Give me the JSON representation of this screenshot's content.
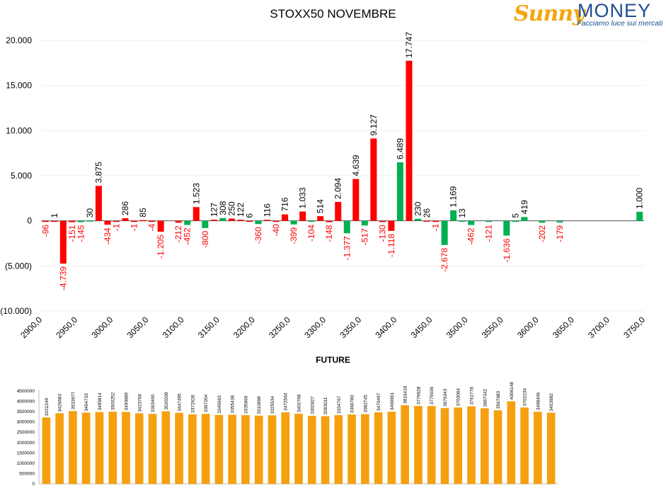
{
  "logo": {
    "name_part1": "Sunny",
    "name_part2": "MONEY",
    "tagline": "Facciamo luce sui mercati"
  },
  "chart_data": [
    {
      "type": "bar",
      "title": "STOXX50 NOVEMBRE",
      "ylim": [
        -10000,
        20000
      ],
      "yticks": [
        20000,
        15000,
        10000,
        5000,
        0,
        -5000,
        -10000
      ],
      "ytick_labels": [
        "20.000",
        "15.000",
        "10.000",
        "5.000",
        "0",
        "(5.000)",
        "(10.000)"
      ],
      "grid": true,
      "x_min": 2900,
      "x_step": 12.5,
      "xtick_labels": [
        "2900,0",
        "2950,0",
        "3000,0",
        "3050,0",
        "3100,0",
        "3150,0",
        "3200,0",
        "3250,0",
        "3300,0",
        "3350,0",
        "3400,0",
        "3450,0",
        "3500,0",
        "3550,0",
        "3600,0",
        "3650,0",
        "3700,0",
        "3750,0"
      ],
      "colors": {
        "positive": "#ff0000",
        "negative": "#00b050",
        "label_positive": "#000000",
        "label_negative": "#ff0000"
      },
      "bars": [
        {
          "value": -96,
          "color": "red",
          "label": "-96"
        },
        {
          "value": 1,
          "color": "red",
          "label": "1"
        },
        {
          "value": -4739,
          "color": "red",
          "label": "-4.739"
        },
        {
          "value": -151,
          "color": "red",
          "label": "-151"
        },
        {
          "value": -145,
          "color": "green",
          "label": "-145"
        },
        {
          "value": 30,
          "color": "green",
          "label": "30"
        },
        {
          "value": 3875,
          "color": "red",
          "label": "3.875"
        },
        {
          "value": -434,
          "color": "red",
          "label": "-434"
        },
        {
          "value": -1,
          "color": "red",
          "label": "-1"
        },
        {
          "value": 286,
          "color": "red",
          "label": "286"
        },
        {
          "value": -1,
          "color": "red",
          "label": "-1"
        },
        {
          "value": 85,
          "color": "red",
          "label": "85"
        },
        {
          "value": -4,
          "color": "red",
          "label": "-4"
        },
        {
          "value": -1205,
          "color": "red",
          "label": "-1.205"
        },
        {
          "value": 0,
          "color": "red",
          "label": ""
        },
        {
          "value": -212,
          "color": "red",
          "label": "-212"
        },
        {
          "value": -452,
          "color": "green",
          "label": "-452"
        },
        {
          "value": 1523,
          "color": "red",
          "label": "1.523"
        },
        {
          "value": -800,
          "color": "green",
          "label": "-800"
        },
        {
          "value": 127,
          "color": "red",
          "label": "127"
        },
        {
          "value": 308,
          "color": "green",
          "label": "308"
        },
        {
          "value": 250,
          "color": "red",
          "label": "250"
        },
        {
          "value": 122,
          "color": "red",
          "label": "122"
        },
        {
          "value": 6,
          "color": "red",
          "label": "6"
        },
        {
          "value": -360,
          "color": "green",
          "label": "-360"
        },
        {
          "value": 116,
          "color": "red",
          "label": "116"
        },
        {
          "value": -40,
          "color": "red",
          "label": "-40"
        },
        {
          "value": 716,
          "color": "red",
          "label": "716"
        },
        {
          "value": -399,
          "color": "green",
          "label": "-399"
        },
        {
          "value": 1033,
          "color": "red",
          "label": "1.033"
        },
        {
          "value": -104,
          "color": "green",
          "label": "-104"
        },
        {
          "value": 514,
          "color": "red",
          "label": "514"
        },
        {
          "value": -148,
          "color": "red",
          "label": "-148"
        },
        {
          "value": 2094,
          "color": "red",
          "label": "2.094"
        },
        {
          "value": -1377,
          "color": "green",
          "label": "-1.377"
        },
        {
          "value": 4639,
          "color": "red",
          "label": "4.639"
        },
        {
          "value": -517,
          "color": "green",
          "label": "-517"
        },
        {
          "value": 9127,
          "color": "red",
          "label": "9.127"
        },
        {
          "value": -130,
          "color": "red",
          "label": "-130"
        },
        {
          "value": -1118,
          "color": "red",
          "label": "-1.118"
        },
        {
          "value": 6489,
          "color": "green",
          "label": "6.489"
        },
        {
          "value": 17747,
          "color": "red",
          "label": "17.747"
        },
        {
          "value": 230,
          "color": "green",
          "label": "230"
        },
        {
          "value": 26,
          "color": "red",
          "label": "26"
        },
        {
          "value": -1,
          "color": "red",
          "label": "-1"
        },
        {
          "value": -2678,
          "color": "green",
          "label": "-2.678"
        },
        {
          "value": 1169,
          "color": "green",
          "label": "1.169"
        },
        {
          "value": 13,
          "color": "green",
          "label": "13"
        },
        {
          "value": -462,
          "color": "green",
          "label": "-462"
        },
        {
          "value": 0,
          "color": "green",
          "label": ""
        },
        {
          "value": -121,
          "color": "green",
          "label": "-121"
        },
        {
          "value": 0,
          "color": "green",
          "label": ""
        },
        {
          "value": -1636,
          "color": "green",
          "label": "-1.636"
        },
        {
          "value": 5,
          "color": "green",
          "label": "5"
        },
        {
          "value": 419,
          "color": "green",
          "label": "419"
        },
        {
          "value": 0,
          "color": "green",
          "label": ""
        },
        {
          "value": -202,
          "color": "green",
          "label": "-202"
        },
        {
          "value": 0,
          "color": "green",
          "label": ""
        },
        {
          "value": -179,
          "color": "green",
          "label": "-179"
        },
        {
          "value": 0,
          "color": "green",
          "label": ""
        },
        {
          "value": 0,
          "color": "green",
          "label": ""
        },
        {
          "value": 0,
          "color": "green",
          "label": ""
        },
        {
          "value": 0,
          "color": "green",
          "label": ""
        },
        {
          "value": 0,
          "color": "green",
          "label": ""
        },
        {
          "value": 0,
          "color": "green",
          "label": ""
        },
        {
          "value": 0,
          "color": "green",
          "label": ""
        },
        {
          "value": 0,
          "color": "green",
          "label": ""
        },
        {
          "value": 1000,
          "color": "green",
          "label": "1.000"
        }
      ]
    },
    {
      "type": "bar",
      "title": "FUTURE",
      "ylim": [
        0,
        4500000
      ],
      "yticks": [
        0,
        500000,
        1000000,
        1500000,
        2000000,
        2500000,
        3000000,
        3500000,
        4000000,
        4500000
      ],
      "ytick_labels": [
        "0",
        "500000",
        "1000000",
        "1500000",
        "2000000",
        "2500000",
        "3000000",
        "3500000",
        "4000000",
        "4500000"
      ],
      "bar_color": "#f5a00f",
      "values": [
        3221249,
        3426683,
        3533977,
        3454733,
        3485814,
        3503252,
        3490889,
        3423706,
        3393400,
        3520339,
        3447495,
        3372628,
        3397204,
        3345663,
        3355438,
        3335669,
        3310998,
        3325534,
        3472560,
        3402768,
        3302827,
        3283011,
        3334767,
        3366780,
        3382745,
        3470497,
        3499651,
        3816418,
        3779628,
        3775036,
        3679343,
        3703064,
        3761778,
        3667342,
        3567683,
        4006148,
        3702234,
        3498406,
        3453982
      ]
    }
  ]
}
